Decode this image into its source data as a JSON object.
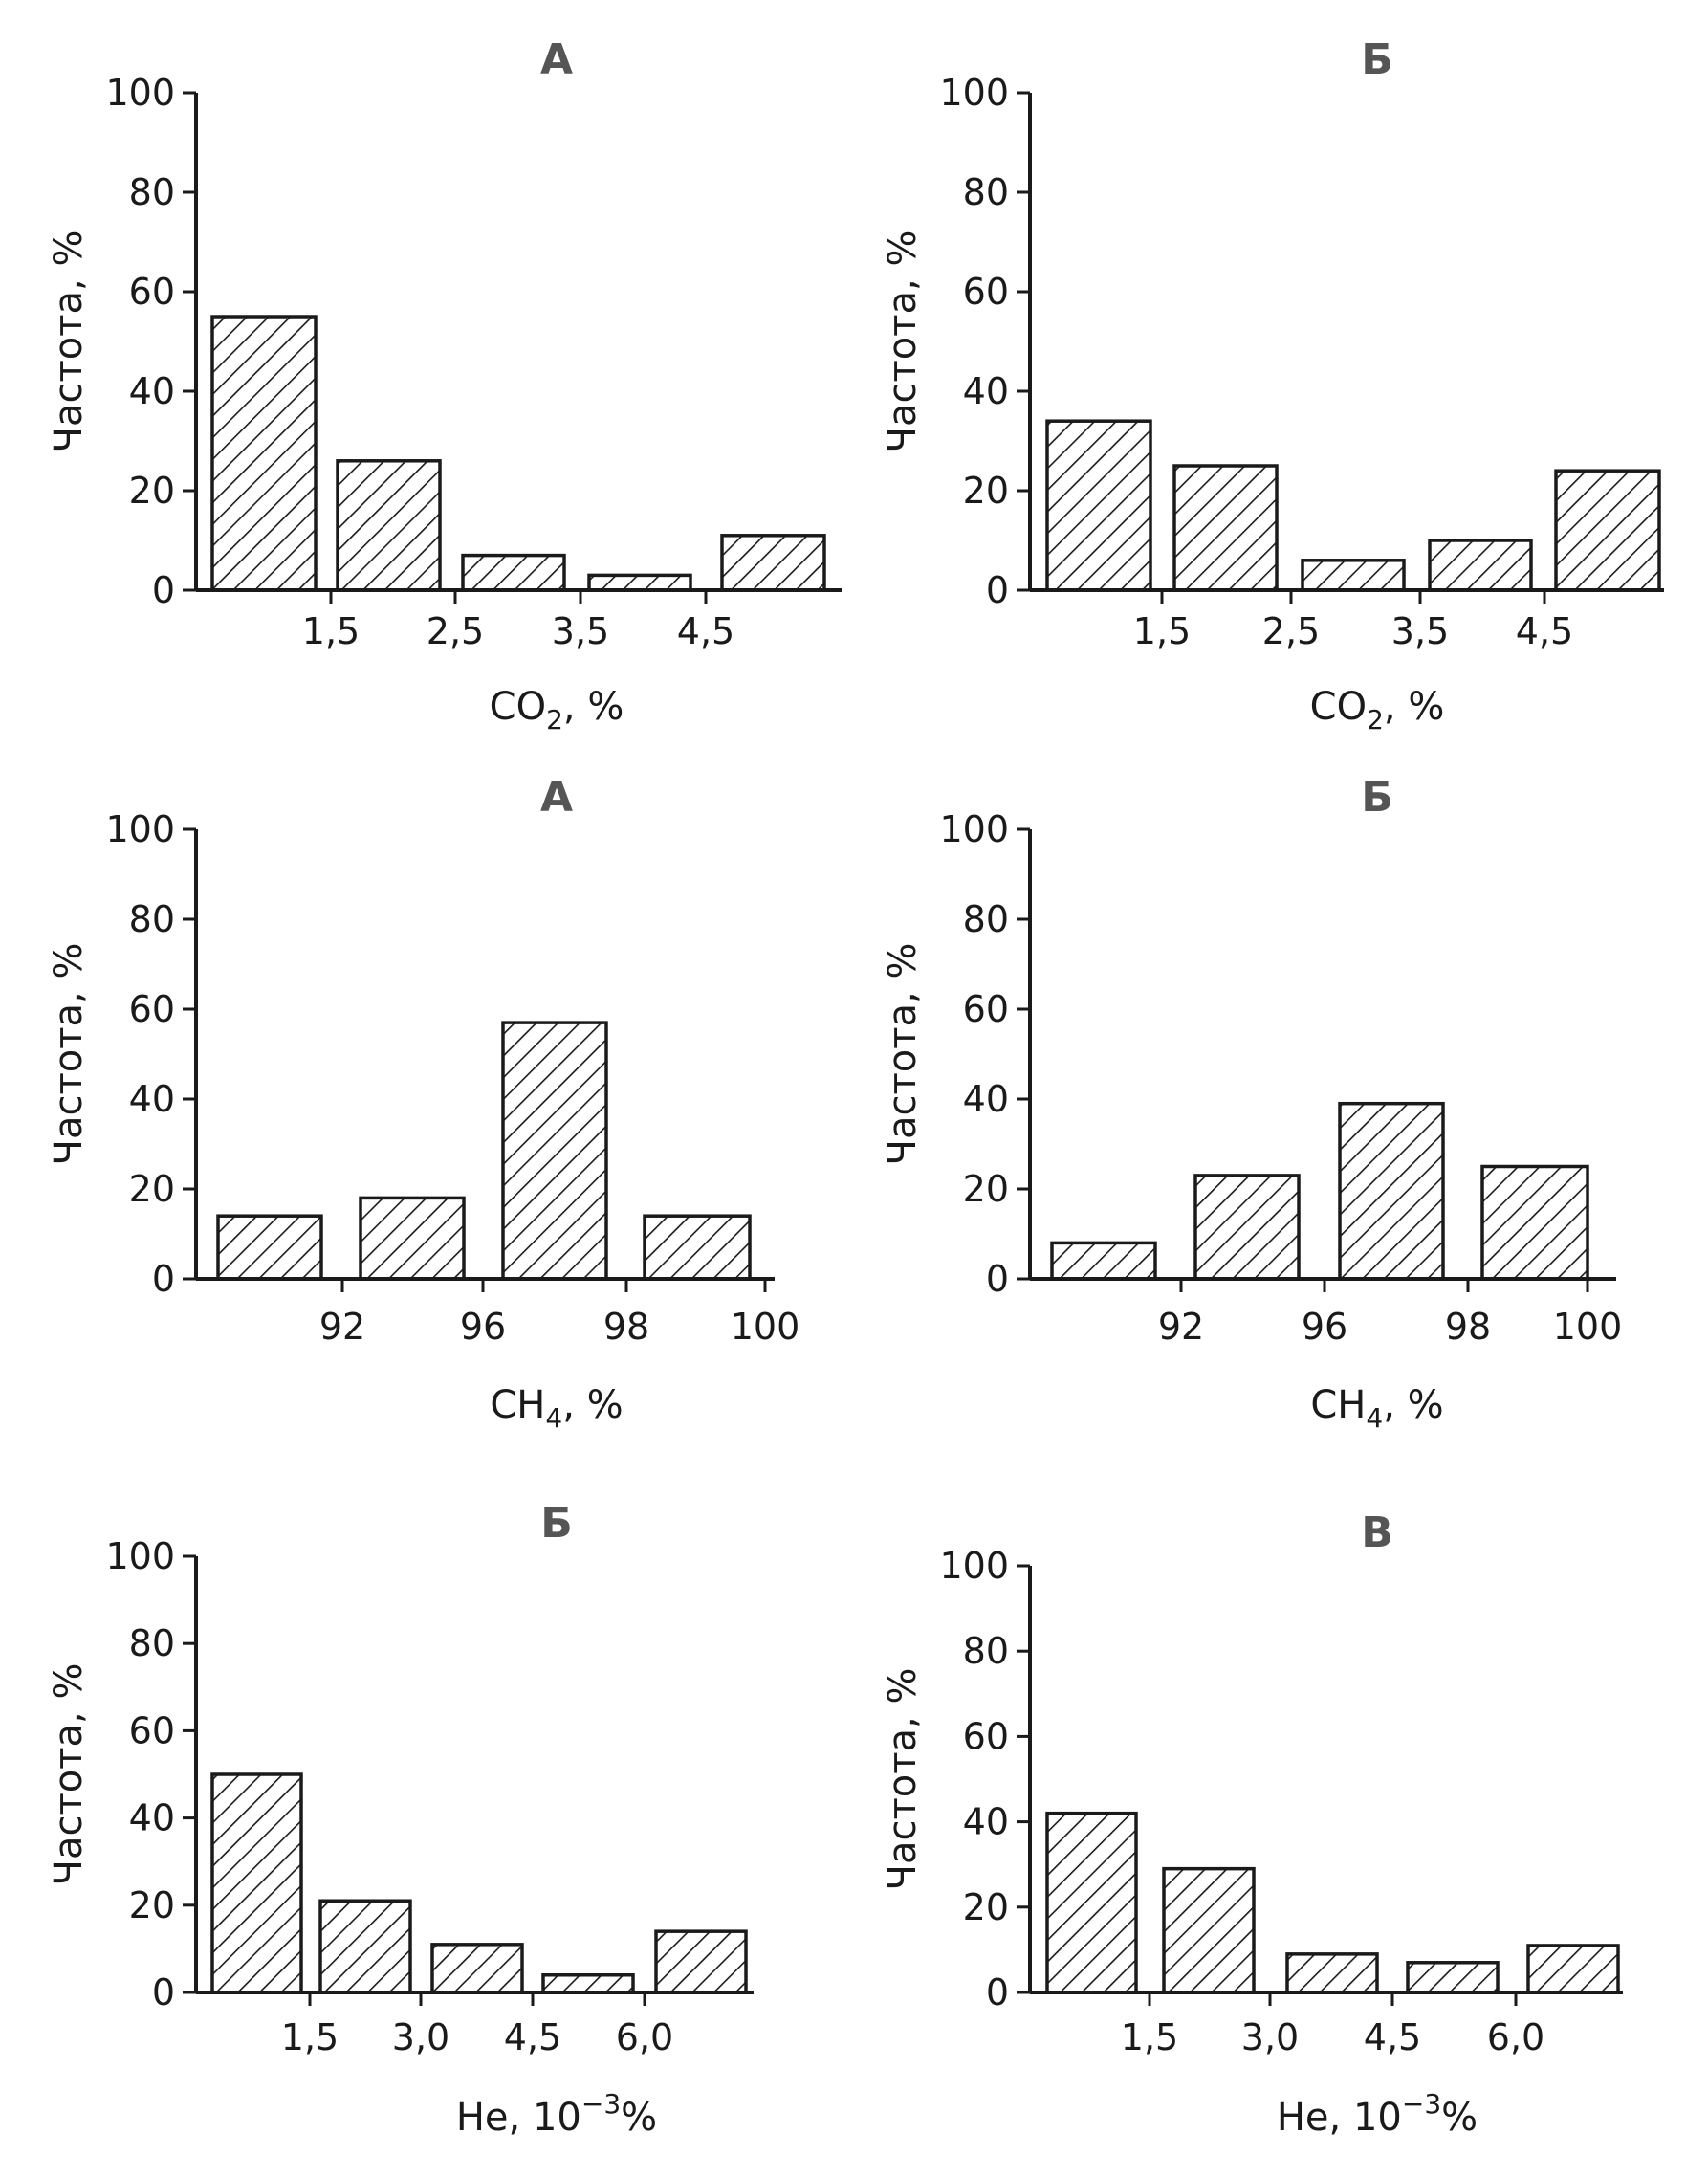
{
  "chart_data": [
    {
      "type": "bar",
      "title": "А",
      "ylabel": "Частота, %",
      "xlabel_main": "CO",
      "xlabel_sub": "2",
      "xlabel_tail": ", %",
      "yticks": [
        "0",
        "20",
        "40",
        "60",
        "80",
        "100"
      ],
      "ylim": [
        0,
        100
      ],
      "xticks": [
        "1,5",
        "2,5",
        "3,5",
        "4,5"
      ],
      "values": [
        55,
        26,
        7,
        3,
        11
      ]
    },
    {
      "type": "bar",
      "title": "Б",
      "ylabel": "Частота, %",
      "xlabel_main": "CO",
      "xlabel_sub": "2",
      "xlabel_tail": ", %",
      "yticks": [
        "0",
        "20",
        "40",
        "60",
        "80",
        "100"
      ],
      "ylim": [
        0,
        100
      ],
      "xticks": [
        "1,5",
        "2,5",
        "3,5",
        "4,5"
      ],
      "values": [
        34,
        25,
        6,
        10,
        24
      ]
    },
    {
      "type": "bar",
      "title": "А",
      "ylabel": "Частота, %",
      "xlabel_main": "CH",
      "xlabel_sub": "4",
      "xlabel_tail": ", %",
      "yticks": [
        "0",
        "20",
        "40",
        "60",
        "80",
        "100"
      ],
      "ylim": [
        0,
        100
      ],
      "xticks": [
        "92",
        "96",
        "98",
        "100"
      ],
      "values": [
        14,
        18,
        57,
        14
      ]
    },
    {
      "type": "bar",
      "title": "Б",
      "ylabel": "Частота, %",
      "xlabel_main": "CH",
      "xlabel_sub": "4",
      "xlabel_tail": ", %",
      "yticks": [
        "0",
        "20",
        "40",
        "60",
        "80",
        "100"
      ],
      "ylim": [
        0,
        100
      ],
      "xticks": [
        "92",
        "96",
        "98",
        "100"
      ],
      "values": [
        8,
        23,
        39,
        25
      ]
    },
    {
      "type": "bar",
      "title": "Б",
      "ylabel": "Частота, %",
      "xlabel_main": "He, 10",
      "xlabel_sup": "−3",
      "xlabel_tail": "%",
      "yticks": [
        "0",
        "20",
        "40",
        "60",
        "80",
        "100"
      ],
      "ylim": [
        0,
        100
      ],
      "xticks": [
        "1,5",
        "3,0",
        "4,5",
        "6,0"
      ],
      "values": [
        50,
        21,
        11,
        4,
        14
      ]
    },
    {
      "type": "bar",
      "title": "В",
      "ylabel": "Частота, %",
      "xlabel_main": "He, 10",
      "xlabel_sup": "−3",
      "xlabel_tail": "%",
      "yticks": [
        "0",
        "20",
        "40",
        "60",
        "80",
        "100"
      ],
      "ylim": [
        0,
        100
      ],
      "xticks": [
        "1,5",
        "3,0",
        "4,5",
        "6,0"
      ],
      "values": [
        42,
        29,
        9,
        7,
        11
      ]
    }
  ]
}
